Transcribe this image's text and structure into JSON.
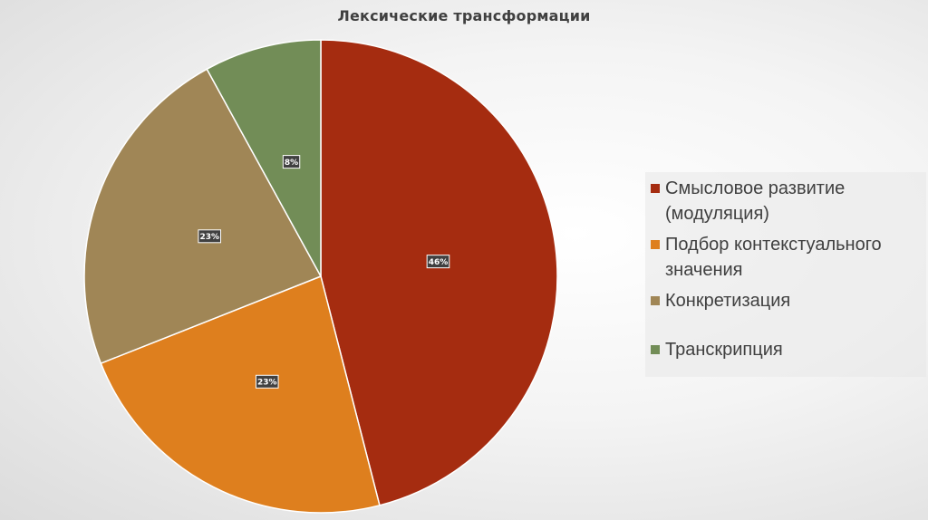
{
  "chart_data": {
    "type": "pie",
    "title": "Лексические трансформации",
    "categories": [
      "Смысловое развитие (модуляция)",
      "Подбор контекстуального значения",
      "Конкретизация",
      "Транскрипция"
    ],
    "values": [
      46,
      23,
      23,
      8
    ],
    "data_labels": [
      "46%",
      "23%",
      "23%",
      "8%"
    ],
    "colors": [
      "#A52C10",
      "#DE7F1E",
      "#A08656",
      "#728D57"
    ],
    "legend_position": "right"
  },
  "legend": {
    "items": [
      {
        "label": "Смысловое развитие\n(модуляция)",
        "color": "#A52C10"
      },
      {
        "label": "Подбор контекстуального\nзначения",
        "color": "#DE7F1E"
      },
      {
        "label": "Конкретизация",
        "color": "#A08656"
      },
      {
        "label": "Транскрипция",
        "color": "#728D57"
      }
    ]
  }
}
